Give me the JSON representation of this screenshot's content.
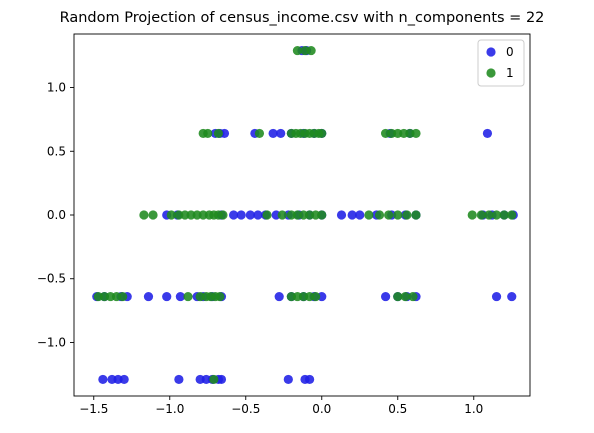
{
  "chart_data": {
    "type": "scatter",
    "title": "Random Projection of census_income.csv with n_components = 22",
    "xlabel": "",
    "ylabel": "",
    "xlim": [
      -1.63,
      1.37
    ],
    "ylim": [
      -1.42,
      1.42
    ],
    "xticks": [
      -1.5,
      -1.0,
      -0.5,
      0.0,
      0.5,
      1.0
    ],
    "xtick_labels": [
      "−1.5",
      "−1.0",
      "−0.5",
      "0.0",
      "0.5",
      "1.0"
    ],
    "yticks": [
      -1.0,
      -0.5,
      0.0,
      0.5,
      1.0
    ],
    "ytick_labels": [
      "−1.0",
      "−0.5",
      "0.0",
      "0.5",
      "1.0"
    ],
    "grid": false,
    "legend": "top-right",
    "series": [
      {
        "name": "0",
        "color": "#1f1fe6",
        "points": [
          [
            -0.13,
            1.29
          ],
          [
            -0.1,
            1.29
          ],
          [
            -0.7,
            0.64
          ],
          [
            -0.67,
            0.64
          ],
          [
            -0.64,
            0.64
          ],
          [
            -0.44,
            0.64
          ],
          [
            -0.32,
            0.64
          ],
          [
            -0.27,
            0.64
          ],
          [
            -0.2,
            0.64
          ],
          [
            -0.12,
            0.64
          ],
          [
            -0.05,
            0.64
          ],
          [
            0.0,
            0.64
          ],
          [
            0.45,
            0.64
          ],
          [
            0.58,
            0.64
          ],
          [
            1.09,
            0.64
          ],
          [
            -1.02,
            0.0
          ],
          [
            -0.95,
            0.0
          ],
          [
            -0.66,
            0.0
          ],
          [
            -0.58,
            0.0
          ],
          [
            -0.53,
            0.0
          ],
          [
            -0.47,
            0.0
          ],
          [
            -0.42,
            0.0
          ],
          [
            -0.37,
            0.0
          ],
          [
            -0.3,
            0.0
          ],
          [
            -0.22,
            0.0
          ],
          [
            -0.15,
            0.0
          ],
          [
            -0.08,
            0.0
          ],
          [
            0.0,
            0.0
          ],
          [
            0.13,
            0.0
          ],
          [
            0.2,
            0.0
          ],
          [
            0.25,
            0.0
          ],
          [
            0.36,
            0.0
          ],
          [
            0.46,
            0.0
          ],
          [
            0.55,
            0.0
          ],
          [
            0.62,
            0.0
          ],
          [
            1.06,
            0.0
          ],
          [
            1.12,
            0.0
          ],
          [
            1.2,
            0.0
          ],
          [
            1.26,
            0.0
          ],
          [
            -1.48,
            -0.64
          ],
          [
            -1.43,
            -0.64
          ],
          [
            -1.32,
            -0.64
          ],
          [
            -1.28,
            -0.64
          ],
          [
            -1.14,
            -0.64
          ],
          [
            -1.02,
            -0.64
          ],
          [
            -0.93,
            -0.64
          ],
          [
            -0.82,
            -0.64
          ],
          [
            -0.78,
            -0.64
          ],
          [
            -0.72,
            -0.64
          ],
          [
            -0.66,
            -0.64
          ],
          [
            -0.28,
            -0.64
          ],
          [
            -0.2,
            -0.64
          ],
          [
            -0.12,
            -0.64
          ],
          [
            -0.05,
            -0.64
          ],
          [
            0.0,
            -0.64
          ],
          [
            0.42,
            -0.64
          ],
          [
            0.5,
            -0.64
          ],
          [
            0.56,
            -0.64
          ],
          [
            0.62,
            -0.64
          ],
          [
            1.15,
            -0.64
          ],
          [
            1.25,
            -0.64
          ],
          [
            -1.44,
            -1.29
          ],
          [
            -1.38,
            -1.29
          ],
          [
            -1.34,
            -1.29
          ],
          [
            -1.3,
            -1.29
          ],
          [
            -0.94,
            -1.29
          ],
          [
            -0.8,
            -1.29
          ],
          [
            -0.76,
            -1.29
          ],
          [
            -0.72,
            -1.29
          ],
          [
            -0.68,
            -1.29
          ],
          [
            -0.66,
            -1.29
          ],
          [
            -0.22,
            -1.29
          ],
          [
            -0.11,
            -1.29
          ],
          [
            -0.08,
            -1.29
          ]
        ]
      },
      {
        "name": "1",
        "color": "#1f8a1f",
        "points": [
          [
            -0.16,
            1.29
          ],
          [
            -0.11,
            1.29
          ],
          [
            -0.07,
            1.29
          ],
          [
            -0.78,
            0.64
          ],
          [
            -0.75,
            0.64
          ],
          [
            -0.68,
            0.64
          ],
          [
            -0.41,
            0.64
          ],
          [
            -0.2,
            0.64
          ],
          [
            -0.17,
            0.64
          ],
          [
            -0.14,
            0.64
          ],
          [
            -0.11,
            0.64
          ],
          [
            -0.08,
            0.64
          ],
          [
            -0.05,
            0.64
          ],
          [
            -0.02,
            0.64
          ],
          [
            0.0,
            0.64
          ],
          [
            0.42,
            0.64
          ],
          [
            0.46,
            0.64
          ],
          [
            0.5,
            0.64
          ],
          [
            0.54,
            0.64
          ],
          [
            0.58,
            0.64
          ],
          [
            0.62,
            0.64
          ],
          [
            -1.17,
            0.0
          ],
          [
            -1.11,
            0.0
          ],
          [
            -0.99,
            0.0
          ],
          [
            -0.94,
            0.0
          ],
          [
            -0.9,
            0.0
          ],
          [
            -0.86,
            0.0
          ],
          [
            -0.82,
            0.0
          ],
          [
            -0.78,
            0.0
          ],
          [
            -0.74,
            0.0
          ],
          [
            -0.71,
            0.0
          ],
          [
            -0.68,
            0.0
          ],
          [
            -0.65,
            0.0
          ],
          [
            -0.36,
            0.0
          ],
          [
            -0.26,
            0.0
          ],
          [
            -0.2,
            0.0
          ],
          [
            -0.16,
            0.0
          ],
          [
            -0.12,
            0.0
          ],
          [
            -0.08,
            0.0
          ],
          [
            -0.04,
            0.0
          ],
          [
            0.0,
            0.0
          ],
          [
            0.31,
            0.0
          ],
          [
            0.38,
            0.0
          ],
          [
            0.44,
            0.0
          ],
          [
            0.5,
            0.0
          ],
          [
            0.56,
            0.0
          ],
          [
            0.62,
            0.0
          ],
          [
            0.99,
            0.0
          ],
          [
            1.05,
            0.0
          ],
          [
            1.1,
            0.0
          ],
          [
            1.15,
            0.0
          ],
          [
            1.2,
            0.0
          ],
          [
            1.25,
            0.0
          ],
          [
            -1.47,
            -0.64
          ],
          [
            -1.43,
            -0.64
          ],
          [
            -1.39,
            -0.64
          ],
          [
            -1.35,
            -0.64
          ],
          [
            -1.31,
            -0.64
          ],
          [
            -0.88,
            -0.64
          ],
          [
            -0.8,
            -0.64
          ],
          [
            -0.76,
            -0.64
          ],
          [
            -0.73,
            -0.64
          ],
          [
            -0.7,
            -0.64
          ],
          [
            -0.67,
            -0.64
          ],
          [
            -0.2,
            -0.64
          ],
          [
            -0.16,
            -0.64
          ],
          [
            -0.12,
            -0.64
          ],
          [
            -0.08,
            -0.64
          ],
          [
            -0.04,
            -0.64
          ],
          [
            0.5,
            -0.64
          ],
          [
            0.55,
            -0.64
          ],
          [
            0.6,
            -0.64
          ],
          [
            -0.71,
            -1.29
          ]
        ]
      }
    ]
  }
}
